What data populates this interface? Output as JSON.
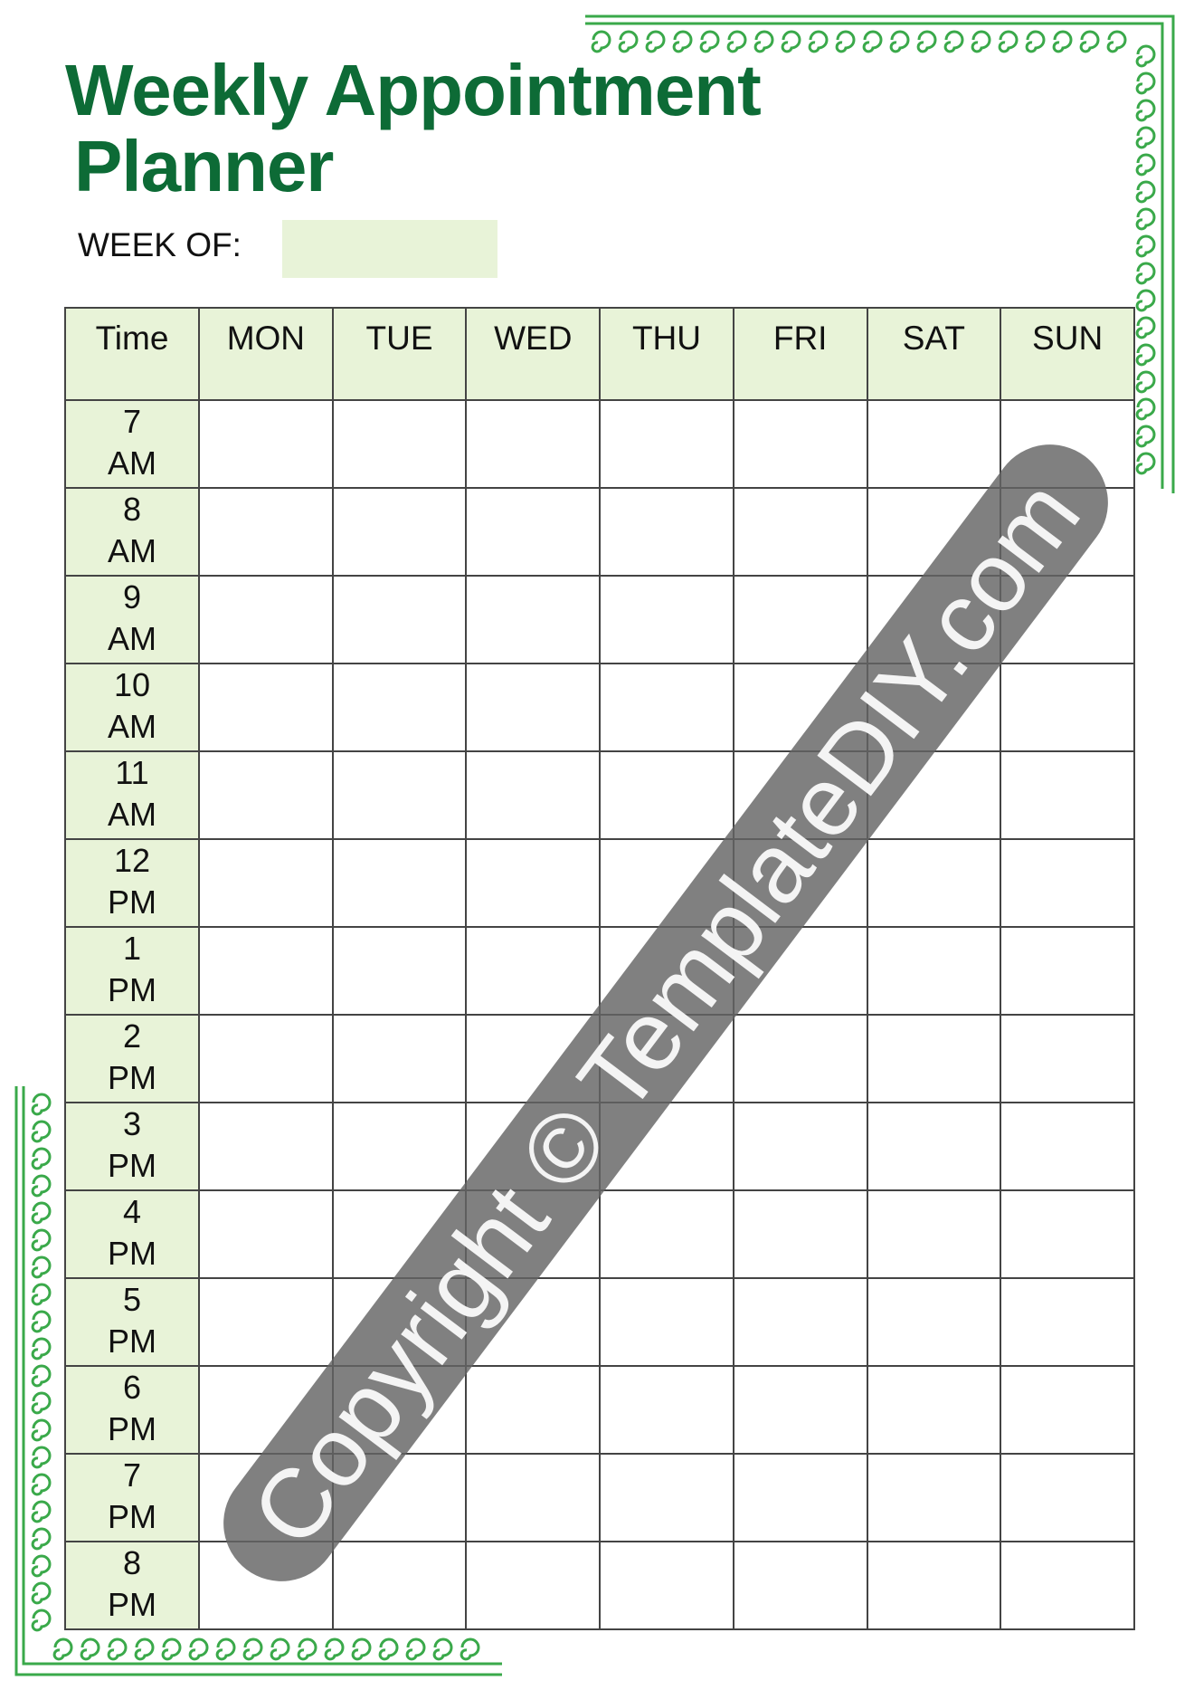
{
  "title": {
    "line1": "Weekly Appointment",
    "line2": "Planner"
  },
  "week_of": {
    "label": "WEEK OF:",
    "value": ""
  },
  "table": {
    "headers": [
      "Time",
      "MON",
      "TUE",
      "WED",
      "THU",
      "FRI",
      "SAT",
      "SUN"
    ],
    "times": [
      [
        "7",
        "AM"
      ],
      [
        "8",
        "AM"
      ],
      [
        "9",
        "AM"
      ],
      [
        "10",
        "AM"
      ],
      [
        "11",
        "AM"
      ],
      [
        "12",
        "PM"
      ],
      [
        "1",
        "PM"
      ],
      [
        "2",
        "PM"
      ],
      [
        "3",
        "PM"
      ],
      [
        "4",
        "PM"
      ],
      [
        "5",
        "PM"
      ],
      [
        "6",
        "PM"
      ],
      [
        "7",
        "PM"
      ],
      [
        "8",
        "PM"
      ]
    ]
  },
  "watermark": "Copyright © TemplateDIY.com",
  "colors": {
    "title": "#0d6b36",
    "fill": "#e8f3d8",
    "ornament": "#3aa94a",
    "grid": "#444444"
  }
}
